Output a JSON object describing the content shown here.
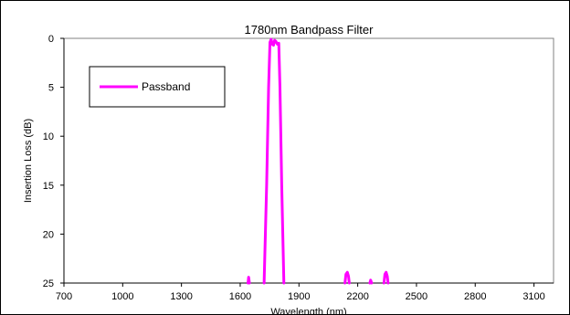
{
  "chart_data": {
    "type": "line",
    "title": "1780nm Bandpass Filter",
    "xlabel": "Wavelength (nm)",
    "ylabel": "Insertion Loss (dB)",
    "xlim": [
      700,
      3200
    ],
    "ylim": [
      0,
      25
    ],
    "y_inverted": true,
    "x_ticks": [
      700,
      1000,
      1300,
      1600,
      1900,
      2200,
      2500,
      2800,
      3100
    ],
    "y_ticks": [
      0,
      5,
      10,
      15,
      20,
      25
    ],
    "grid": false,
    "legend_position": "upper-left",
    "series": [
      {
        "name": "Passband",
        "color": "#ff00ff",
        "segments": [
          [
            [
              1640,
              25
            ],
            [
              1643,
              24.4
            ],
            [
              1647,
              25
            ]
          ],
          [
            [
              1722,
              25
            ],
            [
              1735,
              15
            ],
            [
              1745,
              5
            ],
            [
              1752,
              0.4
            ],
            [
              1758,
              0.1
            ],
            [
              1764,
              0.6
            ],
            [
              1770,
              0.7
            ],
            [
              1776,
              0.2
            ],
            [
              1782,
              0.3
            ],
            [
              1790,
              0.6
            ],
            [
              1797,
              0.5
            ],
            [
              1803,
              5
            ],
            [
              1812,
              15
            ],
            [
              1823,
              25
            ]
          ],
          [
            [
              2135,
              25
            ],
            [
              2140,
              24.1
            ],
            [
              2147,
              23.9
            ],
            [
              2153,
              24.3
            ],
            [
              2157,
              25
            ]
          ],
          [
            [
              2262,
              25
            ],
            [
              2266,
              24.7
            ],
            [
              2271,
              25
            ]
          ],
          [
            [
              2334,
              25
            ],
            [
              2339,
              24.1
            ],
            [
              2345,
              23.9
            ],
            [
              2351,
              24.3
            ],
            [
              2355,
              25
            ]
          ]
        ]
      }
    ]
  }
}
